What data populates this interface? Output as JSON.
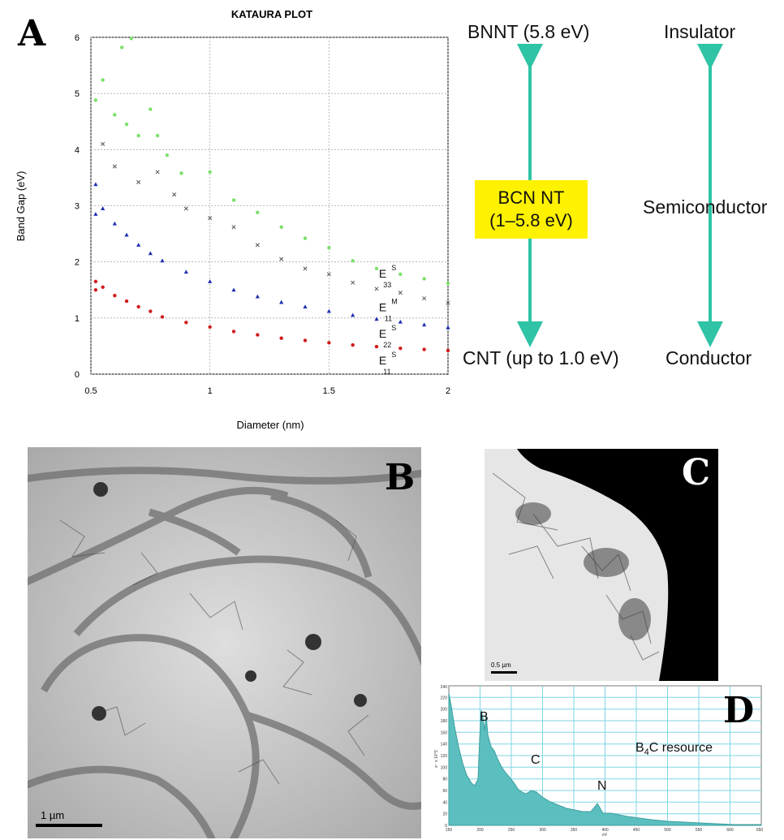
{
  "panels": {
    "a": "A",
    "b": "B",
    "c": "C",
    "d": "D"
  },
  "chart_data": {
    "type": "scatter",
    "title": "KATAURA PLOT",
    "xlabel": "Diameter (nm)",
    "ylabel": "Band Gap (eV)",
    "xlim": [
      0.5,
      2
    ],
    "ylim": [
      0,
      6
    ],
    "xticks": [
      "0.5",
      "1",
      "1.5",
      "2"
    ],
    "yticks": [
      "0",
      "1",
      "2",
      "3",
      "4",
      "5",
      "6"
    ],
    "grid": "dashed",
    "annotations": [
      {
        "main": "E",
        "sup": "S",
        "sub": "33"
      },
      {
        "main": "E",
        "sup": "M",
        "sub": "11"
      },
      {
        "main": "E",
        "sup": "S",
        "sub": "22"
      },
      {
        "main": "E",
        "sup": "S",
        "sub": "11"
      }
    ],
    "series": [
      {
        "color": "#7be06a",
        "marker": "circle",
        "points": [
          [
            0.52,
            4.88
          ],
          [
            0.55,
            5.24
          ],
          [
            0.6,
            4.62
          ],
          [
            0.63,
            5.82
          ],
          [
            0.65,
            4.45
          ],
          [
            0.67,
            5.98
          ],
          [
            0.7,
            4.25
          ],
          [
            0.75,
            4.72
          ],
          [
            0.78,
            4.25
          ],
          [
            0.82,
            3.9
          ],
          [
            0.88,
            3.58
          ],
          [
            1.0,
            3.6
          ],
          [
            1.1,
            3.1
          ],
          [
            1.2,
            2.88
          ],
          [
            1.3,
            2.62
          ],
          [
            1.4,
            2.42
          ],
          [
            1.5,
            2.25
          ],
          [
            1.6,
            2.02
          ],
          [
            1.7,
            1.88
          ],
          [
            1.8,
            1.78
          ],
          [
            1.9,
            1.7
          ],
          [
            2.0,
            1.62
          ]
        ]
      },
      {
        "color": "#555555",
        "marker": "cross",
        "points": [
          [
            0.55,
            4.1
          ],
          [
            0.6,
            3.7
          ],
          [
            0.7,
            3.42
          ],
          [
            0.78,
            3.6
          ],
          [
            0.85,
            3.2
          ],
          [
            0.9,
            2.95
          ],
          [
            1.0,
            2.78
          ],
          [
            1.1,
            2.62
          ],
          [
            1.2,
            2.3
          ],
          [
            1.3,
            2.05
          ],
          [
            1.4,
            1.88
          ],
          [
            1.5,
            1.78
          ],
          [
            1.6,
            1.63
          ],
          [
            1.7,
            1.52
          ],
          [
            1.8,
            1.45
          ],
          [
            1.9,
            1.35
          ],
          [
            2.0,
            1.27
          ]
        ]
      },
      {
        "color": "#1f2fb0",
        "marker": "triangle",
        "points": [
          [
            0.52,
            3.38
          ],
          [
            0.52,
            2.85
          ],
          [
            0.55,
            2.95
          ],
          [
            0.6,
            2.68
          ],
          [
            0.65,
            2.48
          ],
          [
            0.7,
            2.3
          ],
          [
            0.75,
            2.15
          ],
          [
            0.8,
            2.02
          ],
          [
            0.9,
            1.82
          ],
          [
            1.0,
            1.65
          ],
          [
            1.1,
            1.5
          ],
          [
            1.2,
            1.38
          ],
          [
            1.3,
            1.28
          ],
          [
            1.4,
            1.2
          ],
          [
            1.5,
            1.12
          ],
          [
            1.6,
            1.05
          ],
          [
            1.7,
            0.98
          ],
          [
            1.8,
            0.93
          ],
          [
            1.9,
            0.88
          ],
          [
            2.0,
            0.83
          ]
        ]
      },
      {
        "color": "#d01c1c",
        "marker": "circle",
        "points": [
          [
            0.52,
            1.65
          ],
          [
            0.52,
            1.5
          ],
          [
            0.55,
            1.55
          ],
          [
            0.6,
            1.4
          ],
          [
            0.65,
            1.3
          ],
          [
            0.7,
            1.2
          ],
          [
            0.75,
            1.12
          ],
          [
            0.8,
            1.02
          ],
          [
            0.9,
            0.92
          ],
          [
            1.0,
            0.84
          ],
          [
            1.1,
            0.76
          ],
          [
            1.2,
            0.7
          ],
          [
            1.3,
            0.64
          ],
          [
            1.4,
            0.6
          ],
          [
            1.5,
            0.56
          ],
          [
            1.6,
            0.52
          ],
          [
            1.7,
            0.49
          ],
          [
            1.8,
            0.46
          ],
          [
            1.9,
            0.44
          ],
          [
            2.0,
            0.42
          ]
        ]
      }
    ]
  },
  "diagram": {
    "left_top": "BNNT (5.8 eV)",
    "left_middle_line1": "BCN NT",
    "left_middle_line2": "(1–5.8 eV)",
    "left_bottom": "CNT (up to 1.0 eV)",
    "right_top": "Insulator",
    "right_middle": "Semiconductor",
    "right_bottom": "Conductor",
    "arrow_color": "#2ec4a5",
    "box_color": "#fff200"
  },
  "micrographs": {
    "b_scale": "1 µm",
    "c_scale": "0.5 µm"
  },
  "spectrum": {
    "fill_color": "#5bbfbf",
    "grid_color": "#7fd6e6",
    "yaxis_title": "e⁻ x 10^3",
    "yticks": [
      "0",
      "20",
      "40",
      "60",
      "80",
      "100",
      "120",
      "140",
      "160",
      "180",
      "200",
      "220",
      "240"
    ],
    "xticks": [
      "150",
      "200",
      "250",
      "300",
      "350",
      "400",
      "450",
      "500",
      "550",
      "600",
      "650"
    ],
    "xaxis_title": "eV",
    "peak_b": "B",
    "peak_c": "C",
    "peak_n": "N",
    "label_prefix": "B",
    "label_sub": "4",
    "label_suffix": "C resource"
  }
}
